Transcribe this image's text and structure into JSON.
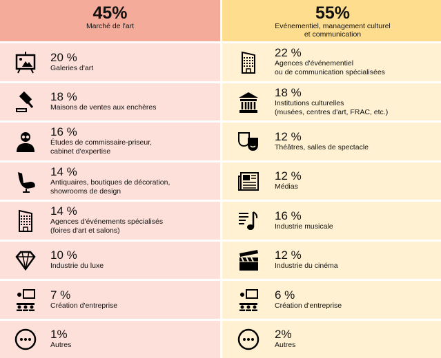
{
  "left": {
    "percent": "45%",
    "title": "Marché de l'art",
    "items": [
      {
        "percent": "20 %",
        "label": "Galeries d'art",
        "icon": "easel-icon"
      },
      {
        "percent": "18 %",
        "label": "Maisons de ventes aux enchères",
        "icon": "gavel-icon"
      },
      {
        "percent": "16 %",
        "label": "Études de commissaire-priseur,\ncabinet d'expertise",
        "icon": "person-icon"
      },
      {
        "percent": "14 %",
        "label": "Antiquaires, boutiques de décoration,\nshowrooms de design",
        "icon": "chair-icon"
      },
      {
        "percent": "14 %",
        "label": "Agences d'événements spécialisés\n(foires d'art et salons)",
        "icon": "building-icon"
      },
      {
        "percent": "10 %",
        "label": "Industrie du luxe",
        "icon": "diamond-icon"
      },
      {
        "percent": "7 %",
        "label": "Création d'entreprise",
        "icon": "presentation-icon"
      },
      {
        "percent": "1%",
        "label": "Autres",
        "icon": "more-icon"
      }
    ]
  },
  "right": {
    "percent": "55%",
    "title": "Evénementiel, management culturel\net communication",
    "items": [
      {
        "percent": "22 %",
        "label": "Agences d'événementiel\nou de communication spécialisées",
        "icon": "building-icon"
      },
      {
        "percent": "18 %",
        "label": "Institutions culturelles\n(musées, centres d'art, FRAC, etc.)",
        "icon": "museum-icon"
      },
      {
        "percent": "12 %",
        "label": "Théâtres, salles de spectacle",
        "icon": "theater-masks-icon"
      },
      {
        "percent": "12 %",
        "label": "Médias",
        "icon": "newspaper-icon"
      },
      {
        "percent": "16 %",
        "label": "Industrie musicale",
        "icon": "music-icon"
      },
      {
        "percent": "12 %",
        "label": "Industrie du cinéma",
        "icon": "clapperboard-icon"
      },
      {
        "percent": "6 %",
        "label": "Création d'entreprise",
        "icon": "presentation-icon"
      },
      {
        "percent": "2%",
        "label": "Autres",
        "icon": "more-icon"
      }
    ]
  }
}
